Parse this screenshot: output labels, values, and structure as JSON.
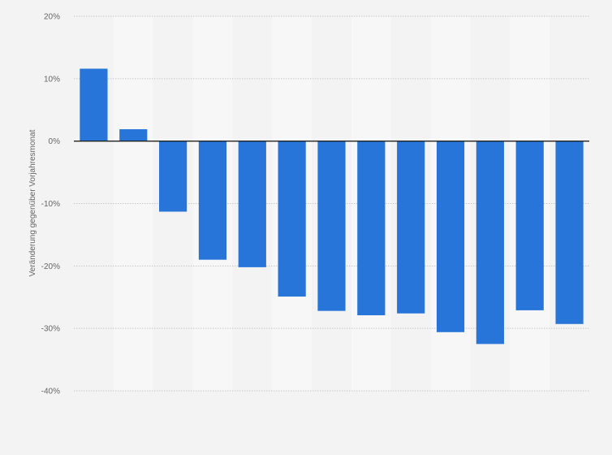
{
  "chart_data": {
    "type": "bar",
    "title": "",
    "xlabel": "",
    "ylabel": "Veränderung gegenüber Vorjahresmonat",
    "ylim": [
      -40,
      20
    ],
    "yticks": [
      20,
      10,
      0,
      -10,
      -20,
      -30,
      -40
    ],
    "ytick_labels": [
      "20%",
      "10%",
      "0%",
      "-10%",
      "-20%",
      "-30%",
      "-40%"
    ],
    "grid": true,
    "categories": [
      "",
      "",
      "",
      "",
      "",
      "",
      "",
      "",
      "",
      "",
      "",
      "",
      ""
    ],
    "values": [
      11.6,
      1.9,
      -11.3,
      -19.0,
      -20.2,
      -24.9,
      -27.2,
      -27.9,
      -27.6,
      -30.6,
      -32.5,
      -27.1,
      -29.3
    ],
    "bar_color": "#2775d9",
    "band_colors": [
      "#f7f7f7",
      "#f3f3f3"
    ]
  }
}
